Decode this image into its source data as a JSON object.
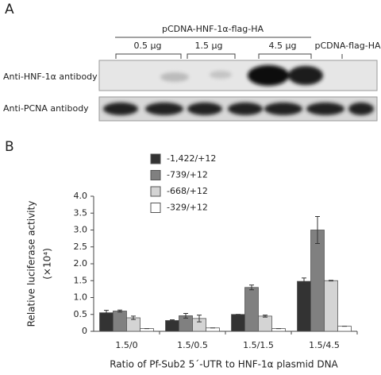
{
  "panel_a": {
    "label": "A",
    "header": "pCDNA-HNF-1α-flag-HA",
    "doses": [
      "0.5 µg",
      "1.5 µg",
      "4.5 µg"
    ],
    "control": "pCDNA-flag-HA",
    "rows": [
      "Anti-HNF-1α antibody",
      "Anti-PCNA antibody"
    ]
  },
  "chart_data": {
    "type": "bar",
    "panel_label": "B",
    "ylabel": "Relative luciferase activity",
    "ylabel_unit": "(×10⁴)",
    "xlabel": "Ratio of Pf-Sub2 5´-UTR to HNF-1α plasmid DNA",
    "categories": [
      "1.5/0",
      "1.5/0.5",
      "1.5/1.5",
      "1.5/4.5"
    ],
    "series": [
      {
        "name": "-1,422/+12",
        "color": "#333333",
        "values": [
          0.55,
          0.32,
          0.5,
          1.48
        ],
        "errors": [
          0.07,
          0.02,
          0,
          0.1
        ]
      },
      {
        "name": "-739/+12",
        "color": "#808080",
        "values": [
          0.6,
          0.46,
          1.3,
          3.0
        ],
        "errors": [
          0.03,
          0.07,
          0.07,
          0.4
        ]
      },
      {
        "name": "-668/+12",
        "color": "#d4d4d4",
        "values": [
          0.4,
          0.38,
          0.45,
          1.5
        ],
        "errors": [
          0.05,
          0.1,
          0.03,
          0.01
        ]
      },
      {
        "name": "-329/+12",
        "color": "#ffffff",
        "values": [
          0.08,
          0.1,
          0.08,
          0.15
        ],
        "errors": [
          0,
          0,
          0,
          0
        ]
      }
    ],
    "ylim": [
      0,
      4
    ],
    "yticks": [
      0,
      0.5,
      {
        "value": 1,
        "label": "1.0"
      },
      1.5,
      {
        "value": 2,
        "label": "2.0"
      },
      2.5,
      {
        "value": 3,
        "label": "3.0"
      },
      3.5,
      {
        "value": 4,
        "label": "4.0"
      }
    ]
  }
}
